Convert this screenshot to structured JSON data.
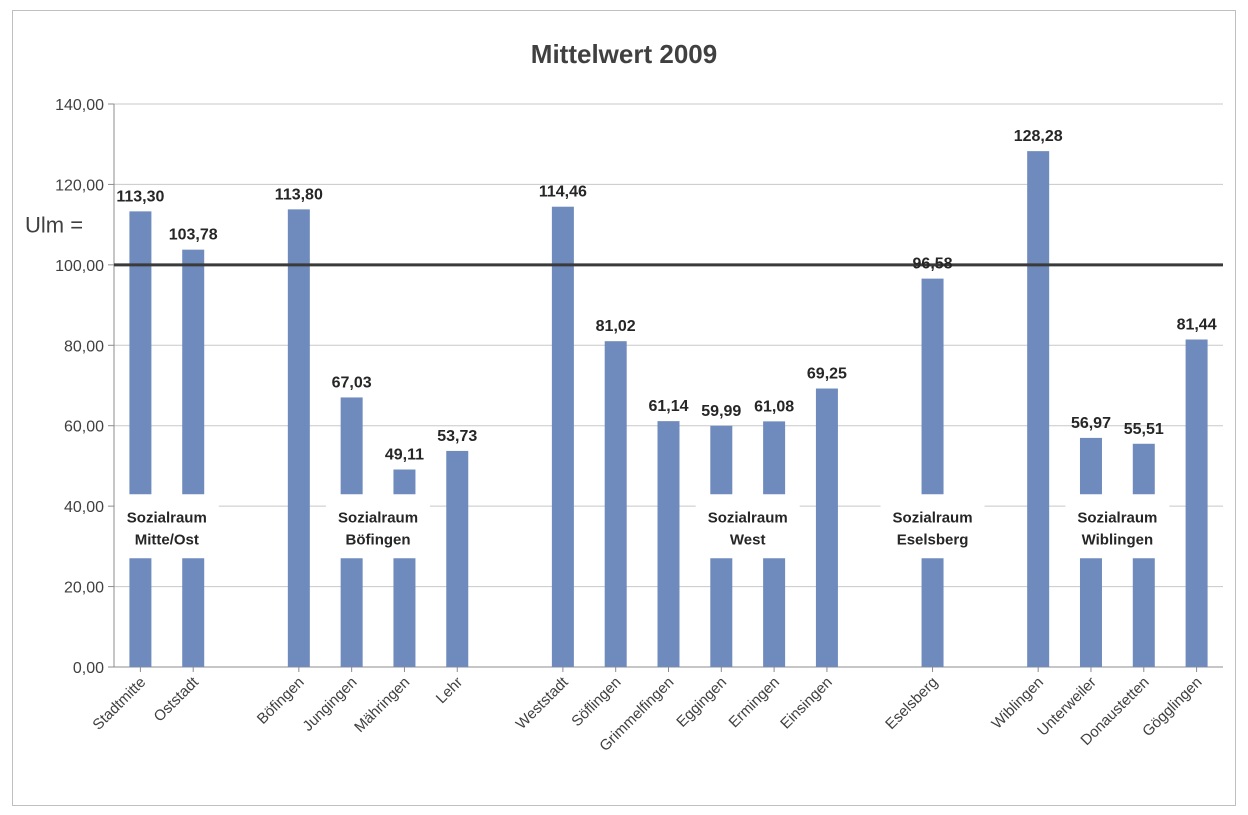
{
  "chart_data": {
    "type": "bar",
    "title": "Mittelwert 2009",
    "xlabel": "",
    "ylabel": "",
    "ylim": [
      0,
      140
    ],
    "yticks": [
      "0,00",
      "20,00",
      "40,00",
      "60,00",
      "80,00",
      "100,00",
      "120,00",
      "140,00"
    ],
    "grid": true,
    "legend": "none",
    "bar_color": "#6f8bbd",
    "reference_line": {
      "value": 100,
      "label": "Ulm =",
      "color": "#3a3a3a"
    },
    "categories": [
      "Stadtmitte",
      "Oststadt",
      "",
      "Böfingen",
      "Jungingen",
      "Mähringen",
      "Lehr",
      "",
      "Weststadt",
      "Söflingen",
      "Grimmelfingen",
      "Eggingen",
      "Ermingen",
      "Einsingen",
      "",
      "Eselsberg",
      "",
      "Wiblingen",
      "Unterweiler",
      "Donaustetten",
      "Gögglingen"
    ],
    "values": [
      113.3,
      103.78,
      null,
      113.8,
      67.03,
      49.11,
      53.73,
      null,
      114.46,
      81.02,
      61.14,
      59.99,
      61.08,
      69.25,
      null,
      96.58,
      null,
      128.28,
      56.97,
      55.51,
      81.44
    ],
    "data_labels": [
      "113,30",
      "103,78",
      "",
      "113,80",
      "67,03",
      "49,11",
      "53,73",
      "",
      "114,46",
      "81,02",
      "61,14",
      "59,99",
      "61,08",
      "69,25",
      "",
      "96,58",
      "",
      "128,28",
      "56,97",
      "55,51",
      "81,44"
    ],
    "annotations": [
      {
        "line1": "Sozialraum",
        "line2": "Mitte/Ost",
        "center_value": 35,
        "first": 0,
        "last": 1
      },
      {
        "line1": "Sozialraum",
        "line2": "Böfingen",
        "center_value": 35,
        "first": 4,
        "last": 5
      },
      {
        "line1": "Sozialraum",
        "line2": "West",
        "center_value": 35,
        "first": 11,
        "last": 12
      },
      {
        "line1": "Sozialraum",
        "line2": "Eselsberg",
        "center_value": 35,
        "first": 15,
        "last": 15
      },
      {
        "line1": "Sozialraum",
        "line2": "Wiblingen",
        "center_value": 35,
        "first": 18,
        "last": 19
      }
    ]
  }
}
